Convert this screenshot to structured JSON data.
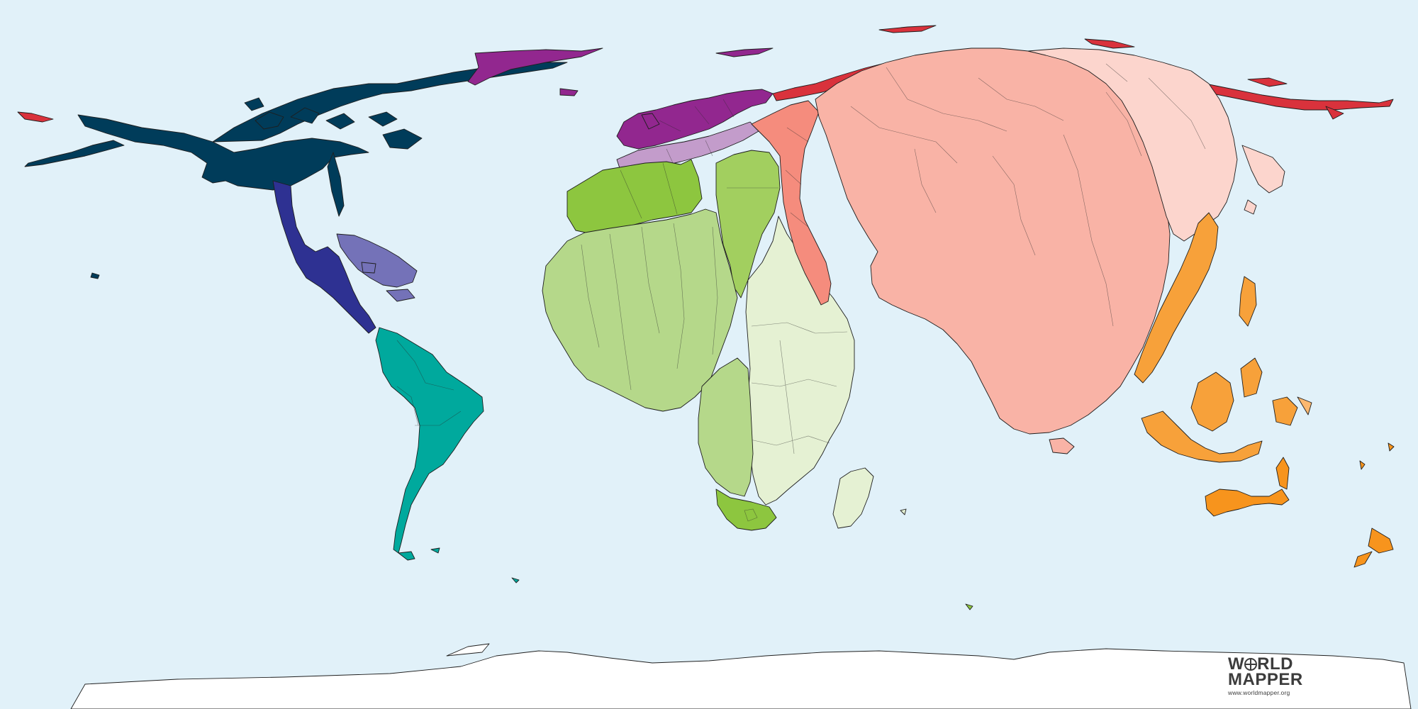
{
  "brand": {
    "line1_pre": "W",
    "line1_post": "RLD",
    "line2": "MAPPER",
    "url": "www.worldmapper.org"
  },
  "map": {
    "ocean_color": "#e1f1f9",
    "regions": [
      {
        "name": "north-america",
        "color": "#003c5a"
      },
      {
        "name": "central-america",
        "color": "#2e3192"
      },
      {
        "name": "caribbean",
        "color": "#7472b8"
      },
      {
        "name": "south-america",
        "color": "#00a99d"
      },
      {
        "name": "western-europe",
        "color": "#92278f"
      },
      {
        "name": "eastern-europe",
        "color": "#c39ccb"
      },
      {
        "name": "northern-africa",
        "color": "#8dc63f"
      },
      {
        "name": "western-africa",
        "color": "#b5d88a"
      },
      {
        "name": "eastern-africa",
        "color": "#e5f1d3"
      },
      {
        "name": "southern-africa",
        "color": "#8dc63f"
      },
      {
        "name": "middle-east",
        "color": "#f58c7d"
      },
      {
        "name": "southern-asia",
        "color": "#f9b3a6"
      },
      {
        "name": "eastern-asia",
        "color": "#fcd5cd"
      },
      {
        "name": "russia",
        "color": "#d9323c"
      },
      {
        "name": "south-east-asia",
        "color": "#f7a13a"
      },
      {
        "name": "oceania",
        "color": "#f7941d"
      },
      {
        "name": "antarctica",
        "color": "#ffffff"
      }
    ]
  }
}
